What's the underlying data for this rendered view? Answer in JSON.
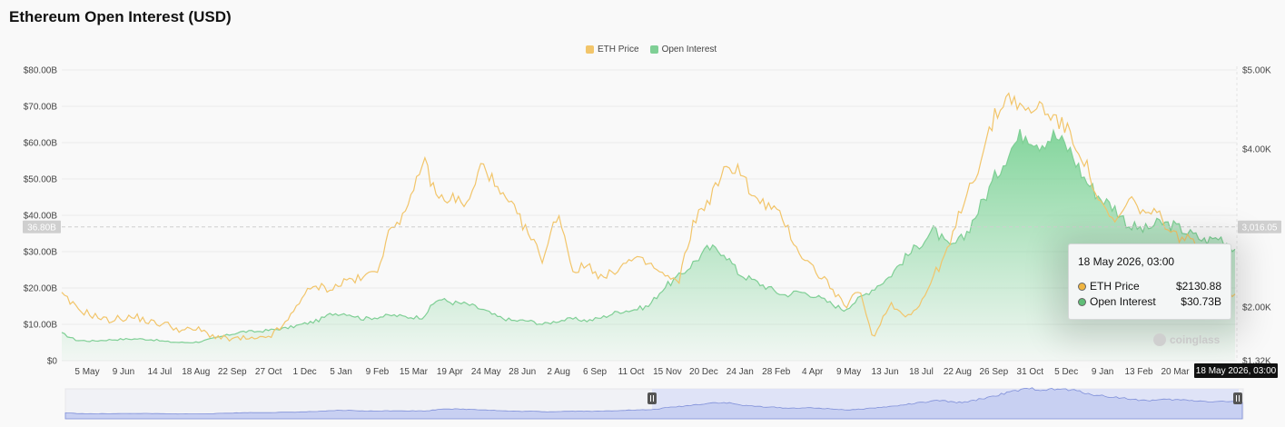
{
  "title": "Ethereum Open Interest (USD)",
  "legend": [
    {
      "name": "ETH Price",
      "color": "#f2c56a"
    },
    {
      "name": "Open Interest",
      "color": "#7fcf95"
    }
  ],
  "tooltip": {
    "time": "18 May 2026, 03:00",
    "rows": [
      {
        "label": "ETH Price",
        "value": "$2130.88",
        "color": "#f0b541"
      },
      {
        "label": "Open Interest",
        "value": "$30.73B",
        "color": "#5fbe77"
      }
    ]
  },
  "crosshair": {
    "left_label": "36.80B",
    "right_label": "3,016.05",
    "left_value": 36.8,
    "right_value": 3016.05
  },
  "x_cursor_label": "18 May 2026, 03:00",
  "watermark": "coinglass",
  "chart_data": {
    "type": "line",
    "title": "Ethereum Open Interest (USD)",
    "x_ticks": [
      "5 May",
      "9 Jun",
      "14 Jul",
      "18 Aug",
      "22 Sep",
      "27 Oct",
      "1 Dec",
      "5 Jan",
      "9 Feb",
      "15 Mar",
      "19 Apr",
      "24 May",
      "28 Jun",
      "2 Aug",
      "6 Sep",
      "11 Oct",
      "15 Nov",
      "20 Dec",
      "24 Jan",
      "28 Feb",
      "4 Apr",
      "9 May",
      "13 Jun",
      "18 Jul",
      "22 Aug",
      "26 Sep",
      "31 Oct",
      "5 Dec",
      "9 Jan",
      "13 Feb",
      "20 Mar"
    ],
    "y_left": {
      "ticks": [
        "$0",
        "$10.00B",
        "$20.00B",
        "$30.00B",
        "$40.00B",
        "$50.00B",
        "$60.00B",
        "$70.00B",
        "$80.00B"
      ],
      "range": [
        0,
        80
      ]
    },
    "y_right": {
      "ticks": [
        "$1.32K",
        "$2.00K",
        "$3.00K",
        "$4.00K",
        "$5.00K"
      ],
      "range": [
        1320,
        5000
      ]
    },
    "series": [
      {
        "name": "ETH Price",
        "axis": "right",
        "color": "#f2c56a",
        "values": [
          2150,
          1980,
          1900,
          1830,
          1860,
          1870,
          1800,
          1780,
          1700,
          1720,
          1640,
          1590,
          1600,
          1580,
          1650,
          1810,
          2150,
          2260,
          2230,
          2350,
          2350,
          2500,
          3050,
          3200,
          3880,
          3370,
          3380,
          3280,
          3850,
          3450,
          3250,
          2930,
          2600,
          3220,
          2450,
          2540,
          2350,
          2500,
          2600,
          2550,
          2400,
          2300,
          3080,
          3350,
          3700,
          3790,
          3360,
          3280,
          3100,
          2700,
          2480,
          2290,
          2000,
          2200,
          1600,
          2050,
          1900,
          2000,
          2400,
          2750,
          3380,
          3800,
          4400,
          4700,
          4450,
          4550,
          4400,
          4200,
          3850,
          3300,
          3050,
          3350,
          3200,
          3150,
          2900,
          2850,
          2650,
          2350,
          2131
        ]
      },
      {
        "name": "Open Interest",
        "axis": "left",
        "color": "#7fcf95",
        "values": [
          7.5,
          5.6,
          5.4,
          5.7,
          5.9,
          6.0,
          5.8,
          5.2,
          5.0,
          5.1,
          6.0,
          7.0,
          8.0,
          8.0,
          8.5,
          9.0,
          10.0,
          11.0,
          13.0,
          13.0,
          11.5,
          12.0,
          12.5,
          12.0,
          12.0,
          17.0,
          16.0,
          15.5,
          14.0,
          12.0,
          11.0,
          11.0,
          10.0,
          11.0,
          11.5,
          11.0,
          12.0,
          13.5,
          14.0,
          15.0,
          20.0,
          23.0,
          27.0,
          31.0,
          30.0,
          24.0,
          22.0,
          20.0,
          18.0,
          19.0,
          18.0,
          16.0,
          14.0,
          17.0,
          20.0,
          23.0,
          28.0,
          32.0,
          36.0,
          31.0,
          34.0,
          42.0,
          50.0,
          58.0,
          63.0,
          60.0,
          62.0,
          58.0,
          50.0,
          45.0,
          42.0,
          37.0,
          36.0,
          38.0,
          37.0,
          35.0,
          33.0,
          34.0,
          30.73
        ]
      }
    ],
    "grid": true,
    "legend_position": "top-center"
  }
}
